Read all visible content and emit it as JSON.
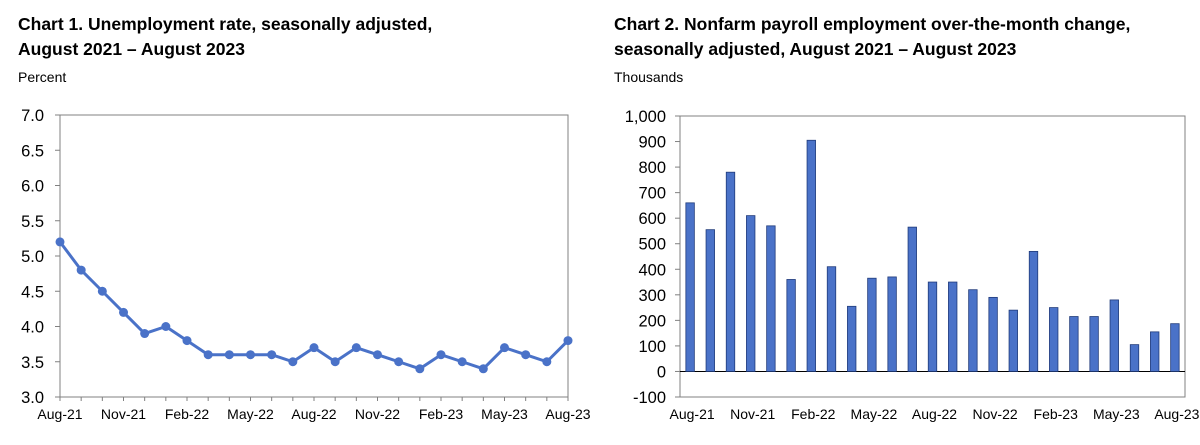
{
  "chart_data": [
    {
      "type": "line",
      "title": "Chart 1. Unemployment rate, seasonally adjusted, August 2021 – August 2023",
      "title_line1": "Chart 1. Unemployment rate, seasonally adjusted,",
      "title_line2": "August 2021 – August 2023",
      "ylabel": "Percent",
      "xlabel": "",
      "ylim": [
        3.0,
        7.0
      ],
      "yticks": [
        "3.0",
        "3.5",
        "4.0",
        "4.5",
        "5.0",
        "5.5",
        "6.0",
        "6.5",
        "7.0"
      ],
      "xtick_labels": [
        "Aug-21",
        "Nov-21",
        "Feb-22",
        "May-22",
        "Aug-22",
        "Nov-22",
        "Feb-23",
        "May-23",
        "Aug-23"
      ],
      "x": [
        "Aug-21",
        "Sep-21",
        "Oct-21",
        "Nov-21",
        "Dec-21",
        "Jan-22",
        "Feb-22",
        "Mar-22",
        "Apr-22",
        "May-22",
        "Jun-22",
        "Jul-22",
        "Aug-22",
        "Sep-22",
        "Oct-22",
        "Nov-22",
        "Dec-22",
        "Jan-23",
        "Feb-23",
        "Mar-23",
        "Apr-23",
        "May-23",
        "Jun-23",
        "Jul-23",
        "Aug-23"
      ],
      "values": [
        5.2,
        4.8,
        4.5,
        4.2,
        3.9,
        4.0,
        3.8,
        3.6,
        3.6,
        3.6,
        3.6,
        3.5,
        3.7,
        3.5,
        3.7,
        3.6,
        3.5,
        3.4,
        3.6,
        3.5,
        3.4,
        3.7,
        3.6,
        3.5,
        3.8
      ],
      "color": "#4a72c8",
      "grid": false
    },
    {
      "type": "bar",
      "title": "Chart 2. Nonfarm payroll employment over-the-month change, seasonally adjusted, August 2021 – August 2023",
      "title_line1": "Chart 2. Nonfarm payroll employment over-the-month change,",
      "title_line2": "seasonally adjusted, August 2021 – August 2023",
      "ylabel": "Thousands",
      "xlabel": "",
      "ylim": [
        -100,
        1000
      ],
      "yticks": [
        "-100",
        "0",
        "100",
        "200",
        "300",
        "400",
        "500",
        "600",
        "700",
        "800",
        "900",
        "1,000"
      ],
      "xtick_labels": [
        "Aug-21",
        "Nov-21",
        "Feb-22",
        "May-22",
        "Aug-22",
        "Nov-22",
        "Feb-23",
        "May-23",
        "Aug-23"
      ],
      "categories": [
        "Aug-21",
        "Sep-21",
        "Oct-21",
        "Nov-21",
        "Dec-21",
        "Jan-22",
        "Feb-22",
        "Mar-22",
        "Apr-22",
        "May-22",
        "Jun-22",
        "Jul-22",
        "Aug-22",
        "Sep-22",
        "Oct-22",
        "Nov-22",
        "Dec-22",
        "Jan-23",
        "Feb-23",
        "Mar-23",
        "Apr-23",
        "May-23",
        "Jun-23",
        "Jul-23",
        "Aug-23"
      ],
      "values": [
        660,
        555,
        780,
        610,
        570,
        360,
        905,
        410,
        255,
        365,
        370,
        565,
        350,
        350,
        320,
        290,
        240,
        470,
        250,
        215,
        215,
        280,
        105,
        155,
        187
      ],
      "color": "#4a72c8",
      "grid": false
    }
  ]
}
